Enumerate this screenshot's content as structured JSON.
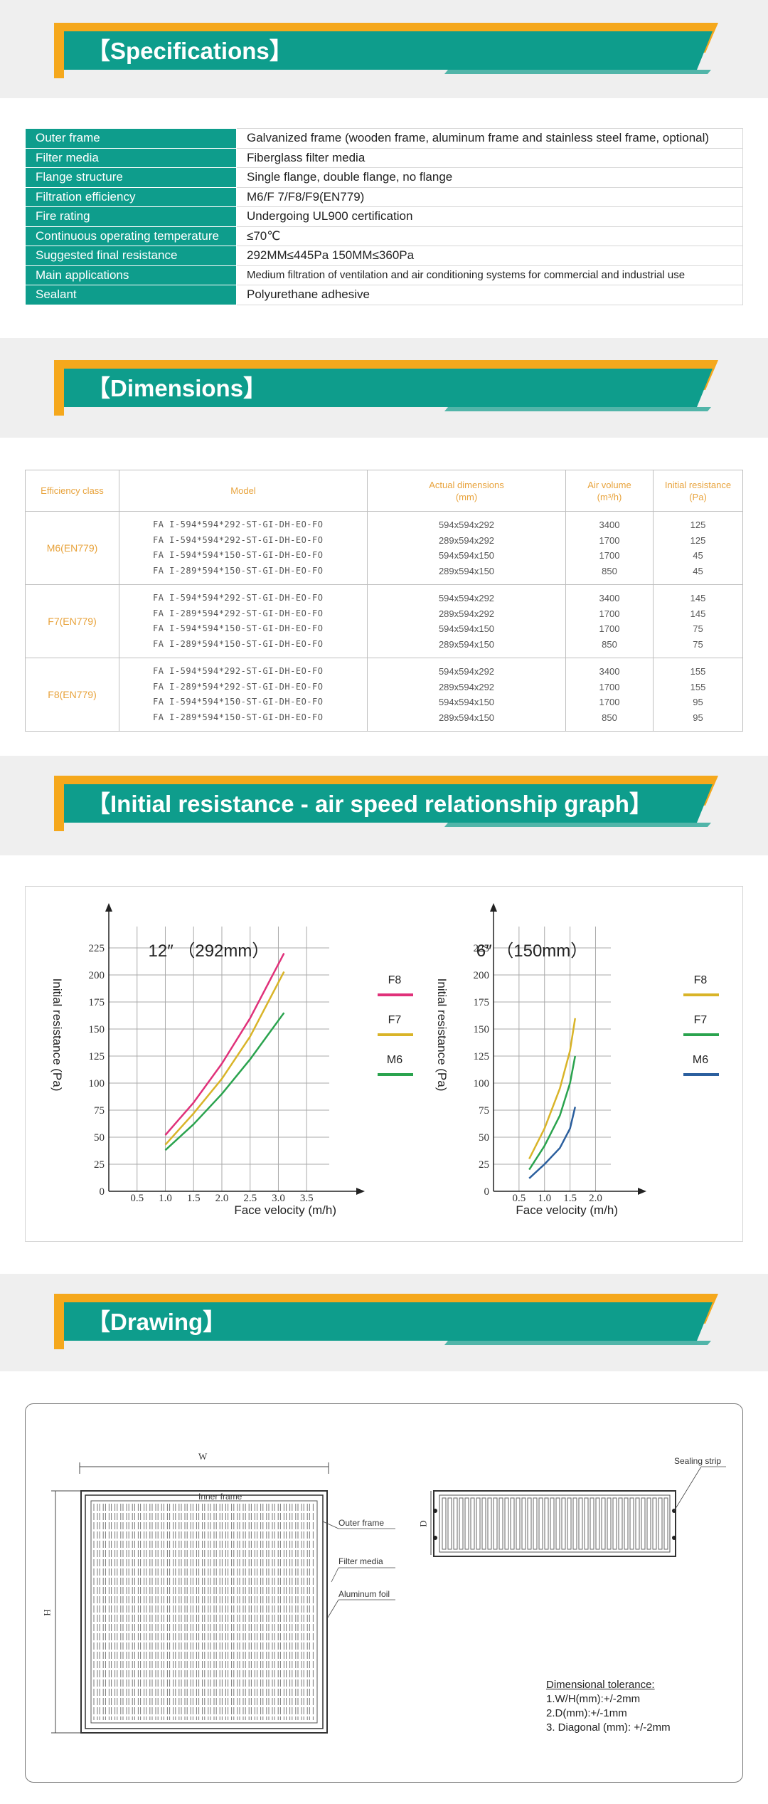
{
  "sections": {
    "specifications": "【Specifications】",
    "dimensions": "【Dimensions】",
    "graph": "【Initial resistance - air speed relationship graph】",
    "drawing": "【Drawing】"
  },
  "specifications": [
    {
      "key": "Outer frame",
      "value": "Galvanized frame (wooden frame, aluminum frame and stainless steel frame, optional)"
    },
    {
      "key": "Filter media",
      "value": "Fiberglass filter media"
    },
    {
      "key": "Flange structure",
      "value": "Single flange, double flange, no flange"
    },
    {
      "key": "Filtration efficiency",
      "value": "M6/F 7/F8/F9(EN779)"
    },
    {
      "key": "Fire rating",
      "value": "Undergoing UL900 certification"
    },
    {
      "key": "Continuous operating temperature",
      "value": "≤70℃"
    },
    {
      "key": "Suggested final resistance",
      "value": "292MM≤445Pa  150MM≤360Pa"
    },
    {
      "key": "Main applications",
      "value": "Medium filtration of ventilation and air conditioning systems for commercial and industrial use"
    },
    {
      "key": "Sealant",
      "value": "Polyurethane adhesive"
    }
  ],
  "dimensions": {
    "headers": {
      "class": "Efficiency class",
      "model": "Model",
      "actual": "Actual dimensions",
      "actual_unit": "(mm)",
      "air": "Air volume",
      "air_unit": "(m³/h)",
      "res": "Initial resistance",
      "res_unit": "(Pa)"
    },
    "groups": [
      {
        "class": "M6(EN779)",
        "models": "FA I-594*594*292-ST-GI-DH-EO-FO\nFA I-594*594*292-ST-GI-DH-EO-FO\nFA I-594*594*150-ST-GI-DH-EO-FO\nFA I-289*594*150-ST-GI-DH-EO-FO",
        "dims": "594x594x292\n289x594x292\n594x594x150\n289x594x150",
        "air": "3400\n1700\n1700\n850",
        "res": "125\n125\n45\n45"
      },
      {
        "class": "F7(EN779)",
        "models": "FA I-594*594*292-ST-GI-DH-EO-FO\nFA I-289*594*292-ST-GI-DH-EO-FO\nFA I-594*594*150-ST-GI-DH-EO-FO\nFA I-289*594*150-ST-GI-DH-EO-FO",
        "dims": "594x594x292\n289x594x292\n594x594x150\n289x594x150",
        "air": "3400\n1700\n1700\n850",
        "res": "145\n145\n75\n75"
      },
      {
        "class": "F8(EN779)",
        "models": "FA I-594*594*292-ST-GI-DH-EO-FO\nFA I-289*594*292-ST-GI-DH-EO-FO\nFA I-594*594*150-ST-GI-DH-EO-FO\nFA I-289*594*150-ST-GI-DH-EO-FO",
        "dims": "594x594x292\n289x594x292\n594x594x150\n289x594x150",
        "air": "3400\n1700\n1700\n850",
        "res": "155\n155\n95\n95"
      }
    ]
  },
  "colors": {
    "teal": "#0e9d8c",
    "gold": "#f5a81c",
    "f8": "#e0317a",
    "f7": "#d9b428",
    "m6": "#2aa34e",
    "m6b": "#2b5f9e",
    "orange_text": "#e8a33c"
  },
  "chart_data": [
    {
      "type": "line",
      "title": "12″  （292mm）",
      "xlabel": "Face velocity (m/h)",
      "ylabel": "Initial resistance (Pa)",
      "xlim": [
        0,
        4
      ],
      "ylim": [
        0,
        250
      ],
      "xticks": [
        0.5,
        1.0,
        1.5,
        2.0,
        2.5,
        3.0,
        3.5
      ],
      "yticks": [
        0,
        25,
        50,
        75,
        100,
        125,
        150,
        175,
        200,
        225
      ],
      "series": [
        {
          "name": "F8",
          "color": "#e0317a",
          "x": [
            1.0,
            1.5,
            2.0,
            2.5,
            3.1
          ],
          "y": [
            52,
            82,
            118,
            160,
            220
          ]
        },
        {
          "name": "F7",
          "color": "#d9b428",
          "x": [
            1.0,
            1.5,
            2.0,
            2.5,
            3.1
          ],
          "y": [
            43,
            72,
            104,
            143,
            203
          ]
        },
        {
          "name": "M6",
          "color": "#2aa34e",
          "x": [
            1.0,
            1.5,
            2.0,
            2.5,
            3.1
          ],
          "y": [
            38,
            62,
            90,
            122,
            165
          ]
        }
      ]
    },
    {
      "type": "line",
      "title": "6″  （150mm）",
      "xlabel": "Face velocity (m/h)",
      "ylabel": "Initial resistance (Pa)",
      "xlim": [
        0,
        2.5
      ],
      "ylim": [
        0,
        250
      ],
      "xticks": [
        0.5,
        1.0,
        1.5,
        2.0
      ],
      "yticks": [
        0,
        25,
        50,
        75,
        100,
        125,
        150,
        175,
        200,
        225
      ],
      "series": [
        {
          "name": "F8",
          "color": "#d9b428",
          "x": [
            0.7,
            1.0,
            1.3,
            1.5,
            1.6
          ],
          "y": [
            30,
            58,
            95,
            130,
            160
          ]
        },
        {
          "name": "F7",
          "color": "#2aa34e",
          "x": [
            0.7,
            1.0,
            1.3,
            1.5,
            1.6
          ],
          "y": [
            20,
            42,
            70,
            100,
            125
          ]
        },
        {
          "name": "M6",
          "color": "#2b5f9e",
          "x": [
            0.7,
            1.0,
            1.3,
            1.5,
            1.6
          ],
          "y": [
            12,
            25,
            40,
            58,
            78
          ]
        }
      ]
    }
  ],
  "drawing": {
    "w": "W",
    "h": "H",
    "d": "D",
    "inner_frame": "Inner frame",
    "outer_frame": "Outer frame",
    "filter_media": "Filter media",
    "aluminum_foil": "Aluminum foil",
    "sealing_strip": "Sealing strip",
    "tol_title": "Dimensional tolerance:",
    "tol1": "1.W/H(mm):+/-2mm",
    "tol2": "2.D(mm):+/-1mm",
    "tol3": "3. Diagonal (mm): +/-2mm"
  }
}
